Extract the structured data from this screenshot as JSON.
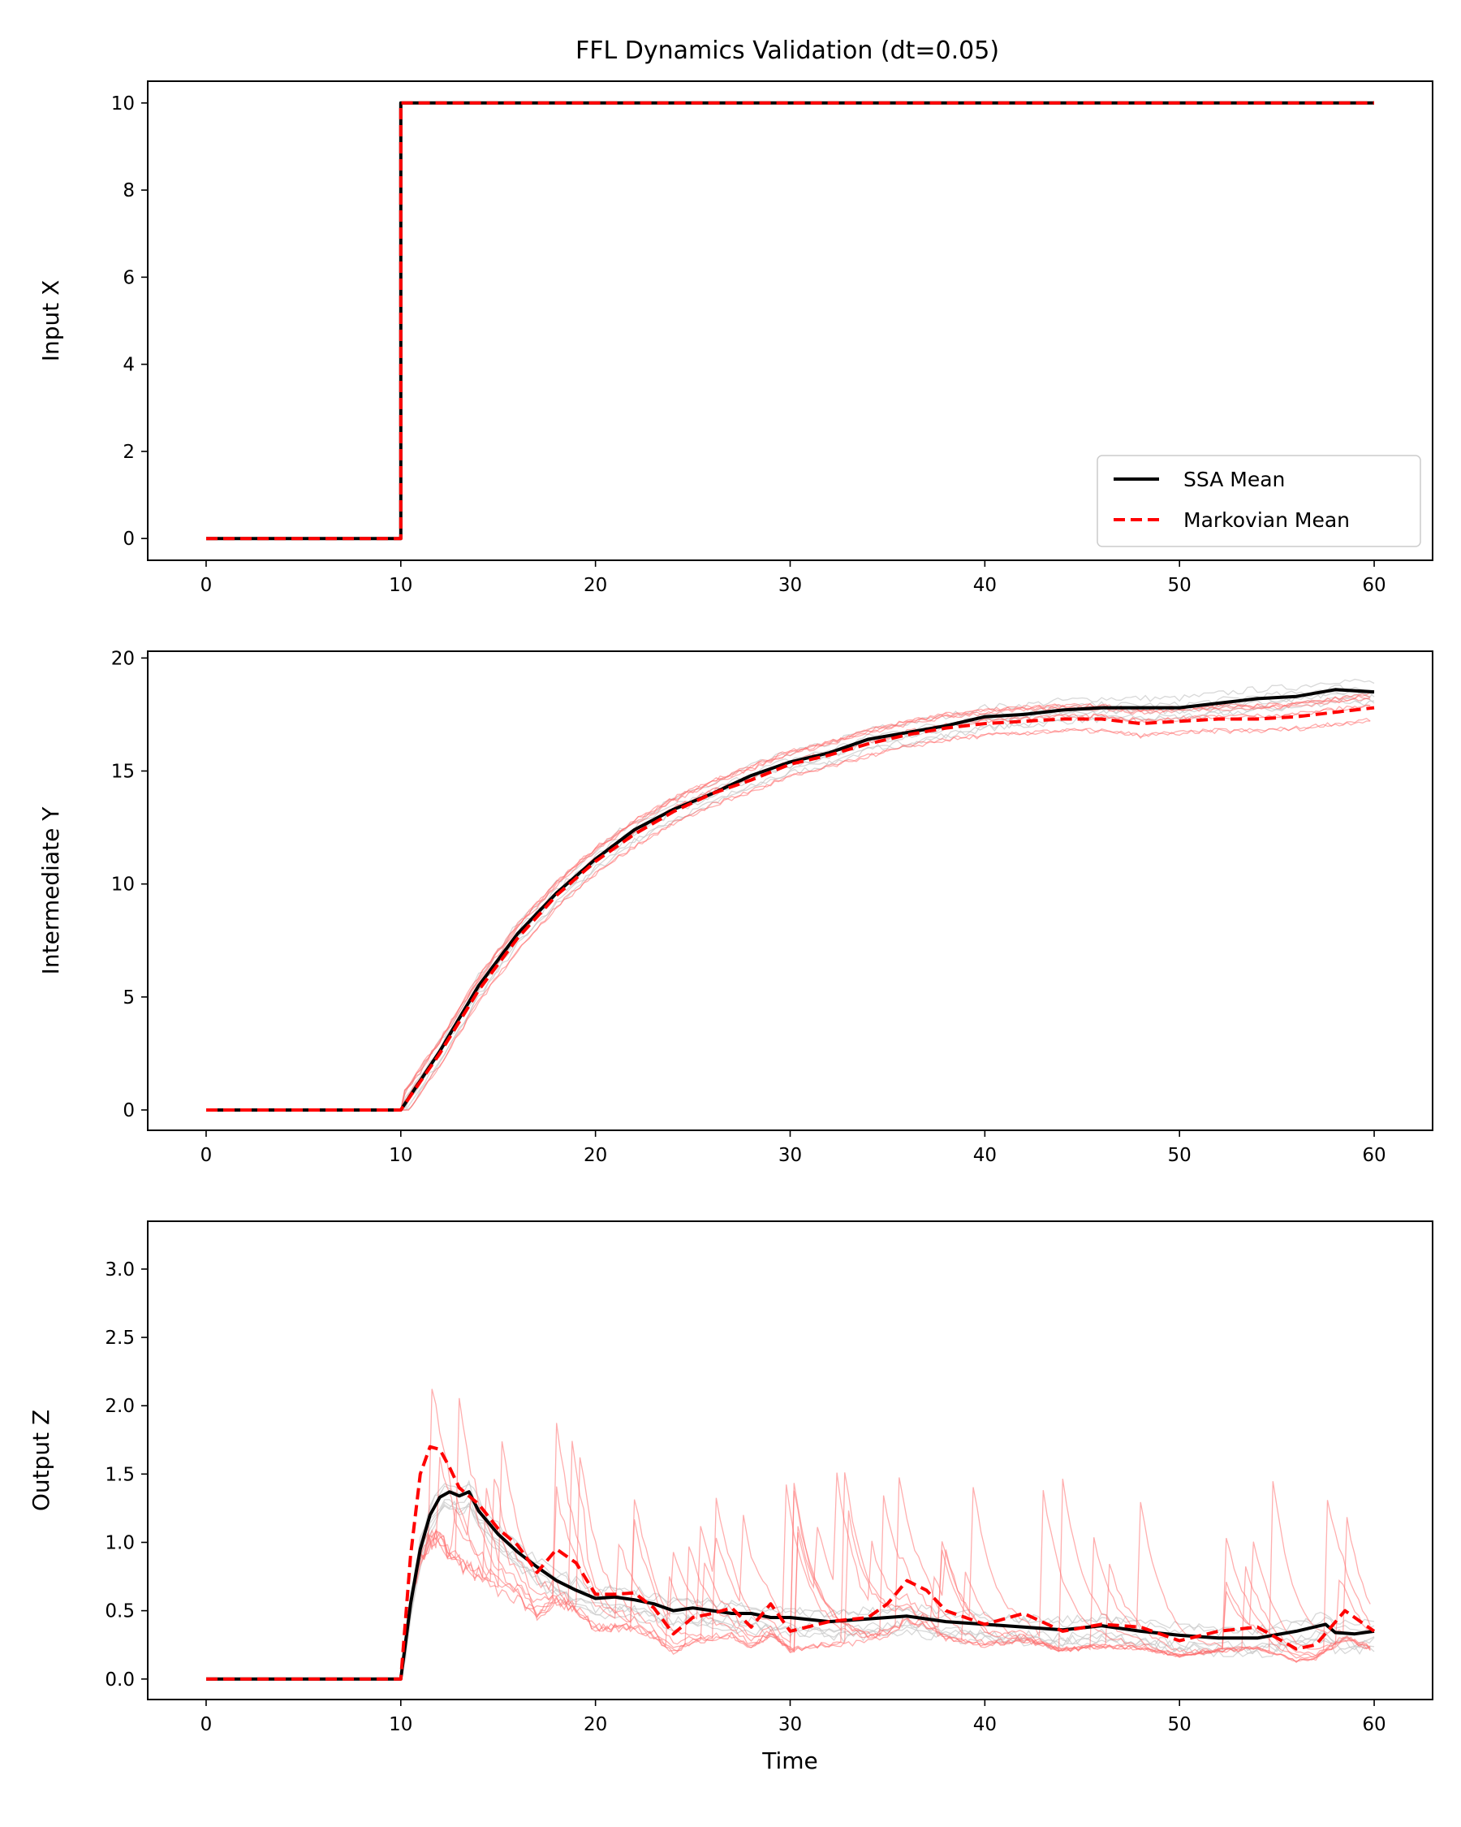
{
  "figure": {
    "title": "FFL Dynamics Validation (dt=0.05)"
  },
  "legend": {
    "entries": [
      {
        "label": "SSA Mean",
        "color": "#000000",
        "style": "solid"
      },
      {
        "label": "Markovian Mean",
        "color": "#ff0000",
        "style": "dashed"
      }
    ],
    "placement": "lower-right"
  },
  "colors": {
    "ssa_mean": "#000000",
    "markov_mean": "#ff0000",
    "ssa_traj": "#c8c8c8",
    "markov_traj": "#ff6b6b"
  },
  "chart_data": [
    {
      "type": "line",
      "ylabel": "Input X",
      "xlabel": "",
      "xlim": [
        -3,
        63
      ],
      "ylim": [
        -0.5,
        10.5
      ],
      "xticks": [
        0,
        10,
        20,
        30,
        40,
        50,
        60
      ],
      "yticks": [
        0,
        2,
        4,
        6,
        8,
        10
      ],
      "ytick_labels": [
        "0",
        "2",
        "4",
        "6",
        "8",
        "10"
      ],
      "series": [
        {
          "name": "SSA Mean",
          "x": [
            0,
            10,
            10,
            60
          ],
          "y": [
            0,
            0,
            10,
            10
          ]
        },
        {
          "name": "Markovian Mean",
          "x": [
            0,
            10,
            10,
            60
          ],
          "y": [
            0,
            0,
            10,
            10
          ]
        }
      ]
    },
    {
      "type": "line",
      "ylabel": "Intermediate Y",
      "xlabel": "",
      "xlim": [
        -3,
        63
      ],
      "ylim": [
        -0.9,
        20.3
      ],
      "xticks": [
        0,
        10,
        20,
        30,
        40,
        50,
        60
      ],
      "yticks": [
        0,
        5,
        10,
        15,
        20
      ],
      "ytick_labels": [
        "0",
        "5",
        "10",
        "15",
        "20"
      ],
      "series": [
        {
          "name": "SSA Mean",
          "x": [
            0,
            10,
            12,
            14,
            16,
            18,
            20,
            22,
            24,
            26,
            28,
            30,
            32,
            34,
            36,
            38,
            40,
            42,
            44,
            46,
            48,
            50,
            52,
            54,
            56,
            58,
            60
          ],
          "y": [
            0,
            0,
            2.6,
            5.5,
            7.8,
            9.6,
            11.1,
            12.4,
            13.3,
            14.0,
            14.8,
            15.4,
            15.8,
            16.4,
            16.7,
            17.0,
            17.4,
            17.5,
            17.7,
            17.8,
            17.8,
            17.8,
            18.0,
            18.2,
            18.3,
            18.6,
            18.5
          ]
        },
        {
          "name": "Markovian Mean",
          "x": [
            0,
            10,
            12,
            14,
            16,
            18,
            20,
            22,
            24,
            26,
            28,
            30,
            32,
            34,
            36,
            38,
            40,
            42,
            44,
            46,
            48,
            50,
            52,
            54,
            56,
            58,
            60
          ],
          "y": [
            0,
            0,
            2.5,
            5.3,
            7.6,
            9.5,
            11.0,
            12.2,
            13.2,
            14.0,
            14.6,
            15.3,
            15.7,
            16.2,
            16.6,
            16.9,
            17.1,
            17.2,
            17.3,
            17.3,
            17.1,
            17.2,
            17.3,
            17.3,
            17.4,
            17.6,
            17.8
          ]
        }
      ]
    },
    {
      "type": "line",
      "ylabel": "Output Z",
      "xlabel": "Time",
      "xlim": [
        -3,
        63
      ],
      "ylim": [
        -0.15,
        3.35
      ],
      "xticks": [
        0,
        10,
        20,
        30,
        40,
        50,
        60
      ],
      "yticks": [
        0,
        0.5,
        1.0,
        1.5,
        2.0,
        2.5,
        3.0
      ],
      "ytick_labels": [
        "0.0",
        "0.5",
        "1.0",
        "1.5",
        "2.0",
        "2.5",
        "3.0"
      ],
      "series": [
        {
          "name": "SSA Mean",
          "x": [
            0,
            10,
            10.5,
            11,
            11.5,
            12,
            12.5,
            13,
            13.5,
            14,
            15,
            16,
            17,
            18,
            19,
            20,
            21,
            22,
            23,
            24,
            25,
            26,
            27,
            28,
            29,
            30,
            32,
            34,
            36,
            38,
            40,
            42,
            44,
            46,
            48,
            50,
            52,
            54,
            56,
            57.5,
            58,
            59,
            60
          ],
          "y": [
            0,
            0,
            0.55,
            0.95,
            1.2,
            1.33,
            1.37,
            1.34,
            1.37,
            1.23,
            1.06,
            0.93,
            0.82,
            0.72,
            0.65,
            0.59,
            0.6,
            0.58,
            0.55,
            0.5,
            0.52,
            0.5,
            0.48,
            0.48,
            0.45,
            0.45,
            0.42,
            0.44,
            0.46,
            0.42,
            0.4,
            0.38,
            0.36,
            0.39,
            0.35,
            0.32,
            0.3,
            0.3,
            0.35,
            0.4,
            0.34,
            0.33,
            0.35
          ]
        },
        {
          "name": "Markovian Mean",
          "x": [
            0,
            10,
            10.5,
            11,
            11.5,
            12,
            12.5,
            13,
            14,
            15,
            16,
            17,
            18,
            19,
            20,
            21,
            22,
            23,
            24,
            25,
            26,
            27,
            28,
            29,
            30,
            32,
            34,
            35,
            36,
            37,
            38,
            40,
            42,
            44,
            46,
            48,
            50,
            52,
            54,
            56,
            57,
            58.5,
            60
          ],
          "y": [
            0,
            0,
            0.9,
            1.5,
            1.7,
            1.68,
            1.55,
            1.4,
            1.28,
            1.1,
            0.98,
            0.78,
            0.95,
            0.85,
            0.62,
            0.62,
            0.63,
            0.52,
            0.33,
            0.45,
            0.48,
            0.52,
            0.38,
            0.55,
            0.35,
            0.42,
            0.45,
            0.55,
            0.72,
            0.65,
            0.5,
            0.4,
            0.48,
            0.35,
            0.4,
            0.38,
            0.28,
            0.35,
            0.38,
            0.22,
            0.25,
            0.5,
            0.35
          ]
        }
      ]
    }
  ]
}
